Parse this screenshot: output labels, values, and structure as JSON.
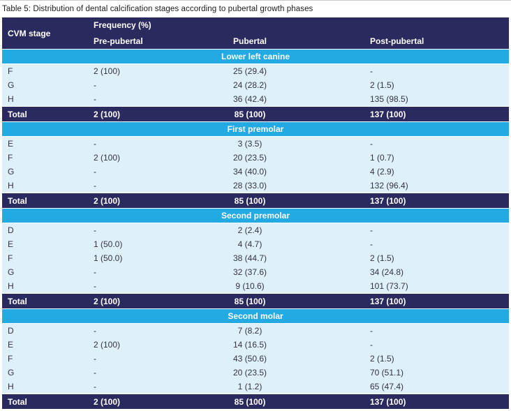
{
  "title": "Table 5: Distribution of dental calcification stages according to pubertal growth phases",
  "colors": {
    "header_navy": "#2b2a5e",
    "section_cyan": "#24aae2",
    "row_light_blue": "#def0fa",
    "header_text": "#ffffff",
    "body_text": "#333342"
  },
  "header": {
    "col1": "CVM stage",
    "group": "Frequency (%)",
    "col2": "Pre-pubertal",
    "col3": "Pubertal",
    "col4": "Post-pubertal"
  },
  "sections": [
    {
      "name": "Lower left canine",
      "rows": [
        {
          "stage": "F",
          "pre": "2 (100)",
          "pub": "25 (29.4)",
          "post": "-"
        },
        {
          "stage": "G",
          "pre": "-",
          "pub": "24 (28.2)",
          "post": "2 (1.5)"
        },
        {
          "stage": "H",
          "pre": "-",
          "pub": "36 (42.4)",
          "post": "135 (98.5)"
        }
      ],
      "total": {
        "stage": "Total",
        "pre": "2 (100)",
        "pub": "85 (100)",
        "post": "137 (100)"
      }
    },
    {
      "name": "First premolar",
      "rows": [
        {
          "stage": "E",
          "pre": "-",
          "pub": "3 (3.5)",
          "post": "-"
        },
        {
          "stage": "F",
          "pre": "2 (100)",
          "pub": "20 (23.5)",
          "post": "1 (0.7)"
        },
        {
          "stage": "G",
          "pre": "-",
          "pub": "34 (40.0)",
          "post": "4 (2.9)"
        },
        {
          "stage": "H",
          "pre": "-",
          "pub": "28 (33.0)",
          "post": "132 (96.4)"
        }
      ],
      "total": {
        "stage": "Total",
        "pre": "2 (100)",
        "pub": "85 (100)",
        "post": "137 (100)"
      }
    },
    {
      "name": "Second premolar",
      "rows": [
        {
          "stage": "D",
          "pre": "-",
          "pub": "2 (2.4)",
          "post": "-"
        },
        {
          "stage": "E",
          "pre": "1 (50.0)",
          "pub": "4 (4.7)",
          "post": "-"
        },
        {
          "stage": "F",
          "pre": "1 (50.0)",
          "pub": "38 (44.7)",
          "post": "2 (1.5)"
        },
        {
          "stage": "G",
          "pre": "-",
          "pub": "32 (37.6)",
          "post": "34 (24.8)"
        },
        {
          "stage": "H",
          "pre": "-",
          "pub": "9 (10.6)",
          "post": "101 (73.7)"
        }
      ],
      "total": {
        "stage": "Total",
        "pre": "2 (100)",
        "pub": "85 (100)",
        "post": "137 (100)"
      }
    },
    {
      "name": "Second molar",
      "rows": [
        {
          "stage": "D",
          "pre": "-",
          "pub": "7 (8.2)",
          "post": "-"
        },
        {
          "stage": "E",
          "pre": "2 (100)",
          "pub": "14 (16.5)",
          "post": "-"
        },
        {
          "stage": "F",
          "pre": "-",
          "pub": "43 (50.6)",
          "post": "2 (1.5)"
        },
        {
          "stage": "G",
          "pre": "-",
          "pub": "20 (23.5)",
          "post": "70 (51.1)"
        },
        {
          "stage": "H",
          "pre": "-",
          "pub": "1 (1.2)",
          "post": "65 (47.4)"
        }
      ],
      "total": {
        "stage": "Total",
        "pre": "2 (100)",
        "pub": "85 (100)",
        "post": "137 (100)"
      }
    }
  ]
}
